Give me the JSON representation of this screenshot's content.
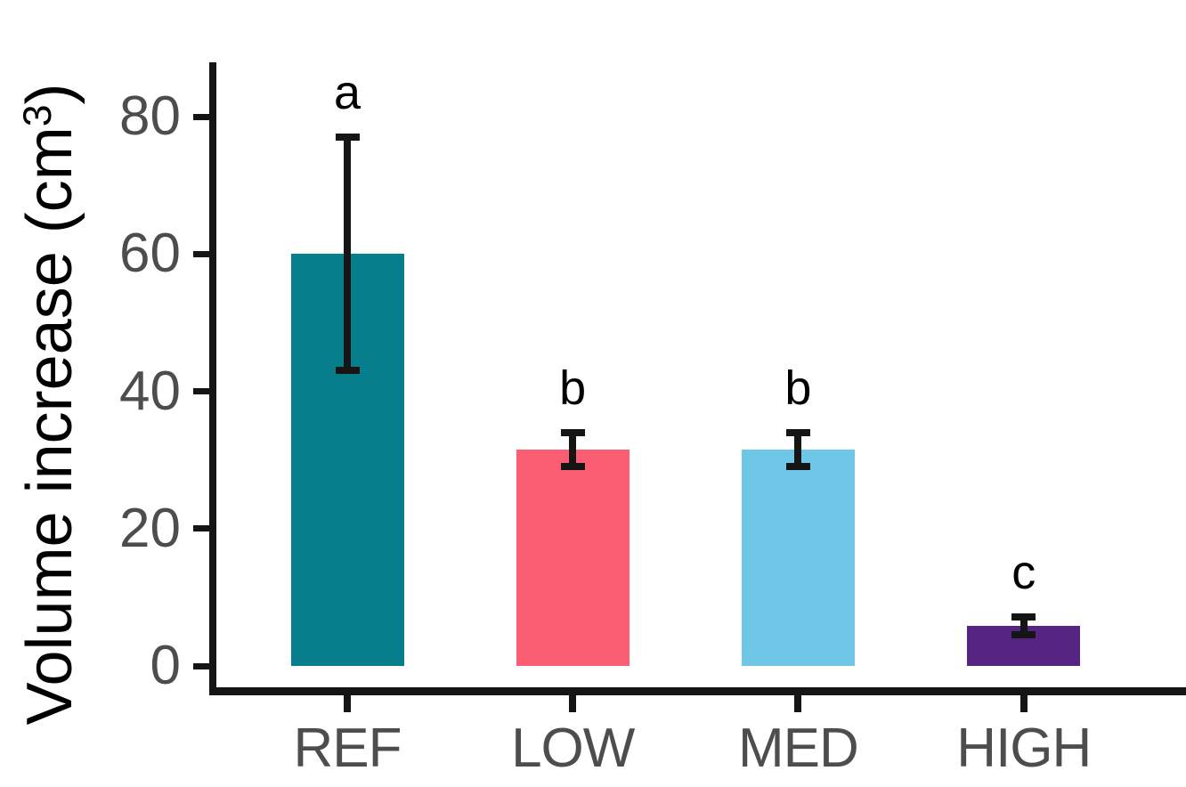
{
  "figure": {
    "background": "#ffffff",
    "axis_color": "#151515",
    "tick_label_color": "#4d4d4d",
    "letter_color": "#000000"
  },
  "chart_data": {
    "type": "bar",
    "title": "",
    "xlabel": "",
    "ylabel": "Volume increase (cm³)",
    "ylabel_parts": {
      "pre": "Volume increase (cm",
      "sup": "3",
      "post": ")"
    },
    "categories": [
      "REF",
      "LOW",
      "MED",
      "HIGH"
    ],
    "values": [
      60,
      31.5,
      31.5,
      5.8
    ],
    "error_low": [
      42.5,
      28.5,
      28.5,
      4.0
    ],
    "error_high": [
      77.5,
      34.5,
      34.5,
      7.6
    ],
    "sig_letters": [
      "a",
      "b",
      "b",
      "c"
    ],
    "bar_colors": [
      "#077E8C",
      "#FB5E72",
      "#6FC7E8",
      "#562483"
    ],
    "yticks": [
      0,
      20,
      40,
      60,
      80
    ],
    "ylim": [
      0,
      88
    ],
    "grid": false,
    "legend": false,
    "error_bars": "shown, black, capped",
    "annotation_note": "significance letters above error bars"
  }
}
